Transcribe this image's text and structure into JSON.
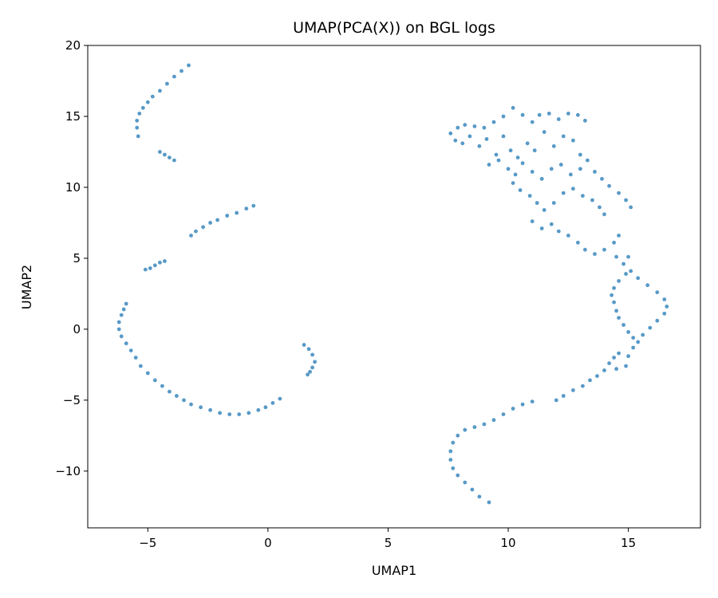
{
  "chart_data": {
    "type": "scatter",
    "title": "UMAP(PCA(X)) on BGL logs",
    "xlabel": "UMAP1",
    "ylabel": "UMAP2",
    "xlim": [
      -7.5,
      18
    ],
    "ylim": [
      -14,
      20
    ],
    "xticks": [
      -5,
      0,
      5,
      10,
      15
    ],
    "xtick_labels": [
      "−5",
      "0",
      "5",
      "10",
      "15"
    ],
    "yticks": [
      -10,
      -5,
      0,
      5,
      10,
      15,
      20
    ],
    "ytick_labels": [
      "−10",
      "−5",
      "0",
      "5",
      "10",
      "15",
      "20"
    ],
    "grid": false,
    "legend": "none",
    "point_color": "#1f77b4",
    "series": [
      {
        "values": [
          [
            -3.3,
            18.6
          ],
          [
            -3.6,
            18.2
          ],
          [
            -3.9,
            17.8
          ],
          [
            -4.2,
            17.3
          ],
          [
            -4.5,
            16.8
          ],
          [
            -4.8,
            16.4
          ],
          [
            -5.0,
            16.0
          ],
          [
            -5.2,
            15.6
          ],
          [
            -5.35,
            15.2
          ],
          [
            -5.45,
            14.7
          ],
          [
            -5.45,
            14.2
          ],
          [
            -5.4,
            13.6
          ],
          [
            -4.5,
            12.5
          ],
          [
            -4.3,
            12.3
          ],
          [
            -4.1,
            12.1
          ],
          [
            -3.9,
            11.9
          ],
          [
            -0.6,
            8.7
          ],
          [
            -0.9,
            8.5
          ],
          [
            -1.3,
            8.2
          ],
          [
            -1.7,
            8.0
          ],
          [
            -2.1,
            7.7
          ],
          [
            -2.4,
            7.5
          ],
          [
            -2.7,
            7.2
          ],
          [
            -3.0,
            6.9
          ],
          [
            -3.2,
            6.6
          ],
          [
            -4.3,
            4.8
          ],
          [
            -4.5,
            4.7
          ],
          [
            -4.7,
            4.5
          ],
          [
            -4.9,
            4.3
          ],
          [
            -5.1,
            4.2
          ],
          [
            -5.9,
            1.8
          ],
          [
            -6.0,
            1.4
          ],
          [
            -6.1,
            1.0
          ],
          [
            -6.2,
            0.5
          ],
          [
            -6.2,
            0.0
          ],
          [
            -6.1,
            -0.5
          ],
          [
            -5.9,
            -1.0
          ],
          [
            -5.7,
            -1.5
          ],
          [
            -5.5,
            -2.0
          ],
          [
            -5.3,
            -2.6
          ],
          [
            -5.0,
            -3.1
          ],
          [
            -4.7,
            -3.6
          ],
          [
            -4.4,
            -4.0
          ],
          [
            -4.1,
            -4.4
          ],
          [
            -3.8,
            -4.7
          ],
          [
            -3.5,
            -5.0
          ],
          [
            -3.2,
            -5.3
          ],
          [
            -2.8,
            -5.5
          ],
          [
            -2.4,
            -5.7
          ],
          [
            -2.0,
            -5.9
          ],
          [
            -1.6,
            -6.0
          ],
          [
            -1.2,
            -6.0
          ],
          [
            -0.8,
            -5.9
          ],
          [
            -0.4,
            -5.7
          ],
          [
            -0.1,
            -5.5
          ],
          [
            0.2,
            -5.2
          ],
          [
            0.5,
            -4.9
          ],
          [
            1.5,
            -1.1
          ],
          [
            1.7,
            -1.4
          ],
          [
            1.85,
            -1.8
          ],
          [
            1.95,
            -2.3
          ],
          [
            1.85,
            -2.7
          ],
          [
            1.75,
            -3.0
          ],
          [
            1.65,
            -3.2
          ],
          [
            7.6,
            13.8
          ],
          [
            7.9,
            14.2
          ],
          [
            8.2,
            14.4
          ],
          [
            8.6,
            14.3
          ],
          [
            9.0,
            14.2
          ],
          [
            9.4,
            14.6
          ],
          [
            9.8,
            15.0
          ],
          [
            10.2,
            15.6
          ],
          [
            10.6,
            15.1
          ],
          [
            11.0,
            14.6
          ],
          [
            11.3,
            15.1
          ],
          [
            11.7,
            15.2
          ],
          [
            12.1,
            14.8
          ],
          [
            12.5,
            15.2
          ],
          [
            12.9,
            15.1
          ],
          [
            13.2,
            14.7
          ],
          [
            7.8,
            13.3
          ],
          [
            8.1,
            13.1
          ],
          [
            8.4,
            13.6
          ],
          [
            8.8,
            12.9
          ],
          [
            9.1,
            13.4
          ],
          [
            9.5,
            12.3
          ],
          [
            9.8,
            13.6
          ],
          [
            10.1,
            12.6
          ],
          [
            10.4,
            12.1
          ],
          [
            10.8,
            13.1
          ],
          [
            11.1,
            12.6
          ],
          [
            11.5,
            13.9
          ],
          [
            11.9,
            12.9
          ],
          [
            12.3,
            13.6
          ],
          [
            12.7,
            13.3
          ],
          [
            13.0,
            12.3
          ],
          [
            9.2,
            11.6
          ],
          [
            9.6,
            11.9
          ],
          [
            10.0,
            11.3
          ],
          [
            10.3,
            10.9
          ],
          [
            10.6,
            11.7
          ],
          [
            11.0,
            11.1
          ],
          [
            11.4,
            10.6
          ],
          [
            11.8,
            11.3
          ],
          [
            12.2,
            11.6
          ],
          [
            12.6,
            10.9
          ],
          [
            13.0,
            11.3
          ],
          [
            13.3,
            11.9
          ],
          [
            13.6,
            11.1
          ],
          [
            13.9,
            10.6
          ],
          [
            14.2,
            10.1
          ],
          [
            14.6,
            9.6
          ],
          [
            14.9,
            9.1
          ],
          [
            15.1,
            8.6
          ],
          [
            10.2,
            10.3
          ],
          [
            10.5,
            9.8
          ],
          [
            10.9,
            9.4
          ],
          [
            11.2,
            8.9
          ],
          [
            11.5,
            8.4
          ],
          [
            11.9,
            8.9
          ],
          [
            12.3,
            9.6
          ],
          [
            12.7,
            9.9
          ],
          [
            13.1,
            9.4
          ],
          [
            13.5,
            9.1
          ],
          [
            13.8,
            8.6
          ],
          [
            14.0,
            8.1
          ],
          [
            11.0,
            7.6
          ],
          [
            11.4,
            7.1
          ],
          [
            11.8,
            7.4
          ],
          [
            12.1,
            6.9
          ],
          [
            12.5,
            6.6
          ],
          [
            12.9,
            6.1
          ],
          [
            13.2,
            5.6
          ],
          [
            13.6,
            5.3
          ],
          [
            14.0,
            5.6
          ],
          [
            14.4,
            6.1
          ],
          [
            14.6,
            6.6
          ],
          [
            14.5,
            5.1
          ],
          [
            14.8,
            4.6
          ],
          [
            15.0,
            5.1
          ],
          [
            15.1,
            4.1
          ],
          [
            15.4,
            3.6
          ],
          [
            15.8,
            3.1
          ],
          [
            16.2,
            2.6
          ],
          [
            16.5,
            2.1
          ],
          [
            16.6,
            1.6
          ],
          [
            16.5,
            1.1
          ],
          [
            16.2,
            0.6
          ],
          [
            15.9,
            0.1
          ],
          [
            15.6,
            -0.4
          ],
          [
            15.4,
            -0.9
          ],
          [
            15.2,
            -1.3
          ],
          [
            14.9,
            3.9
          ],
          [
            14.6,
            3.4
          ],
          [
            14.4,
            2.9
          ],
          [
            14.3,
            2.4
          ],
          [
            14.4,
            1.9
          ],
          [
            14.5,
            1.3
          ],
          [
            14.6,
            0.8
          ],
          [
            14.8,
            0.3
          ],
          [
            15.0,
            -0.2
          ],
          [
            15.2,
            -0.6
          ],
          [
            15.0,
            -1.9
          ],
          [
            14.6,
            -1.7
          ],
          [
            14.4,
            -2.0
          ],
          [
            14.2,
            -2.4
          ],
          [
            14.0,
            -2.9
          ],
          [
            13.7,
            -3.3
          ],
          [
            13.4,
            -3.6
          ],
          [
            13.1,
            -4.0
          ],
          [
            12.7,
            -4.3
          ],
          [
            12.3,
            -4.7
          ],
          [
            12.0,
            -5.0
          ],
          [
            14.9,
            -2.6
          ],
          [
            14.5,
            -2.8
          ],
          [
            11.0,
            -5.1
          ],
          [
            10.6,
            -5.3
          ],
          [
            10.2,
            -5.6
          ],
          [
            9.8,
            -6.0
          ],
          [
            9.4,
            -6.4
          ],
          [
            9.0,
            -6.7
          ],
          [
            8.6,
            -6.9
          ],
          [
            8.2,
            -7.1
          ],
          [
            7.9,
            -7.5
          ],
          [
            7.7,
            -8.0
          ],
          [
            7.6,
            -8.6
          ],
          [
            7.6,
            -9.2
          ],
          [
            7.7,
            -9.8
          ],
          [
            7.9,
            -10.3
          ],
          [
            8.2,
            -10.8
          ],
          [
            8.5,
            -11.3
          ],
          [
            8.8,
            -11.8
          ],
          [
            9.2,
            -12.2
          ]
        ]
      }
    ]
  }
}
